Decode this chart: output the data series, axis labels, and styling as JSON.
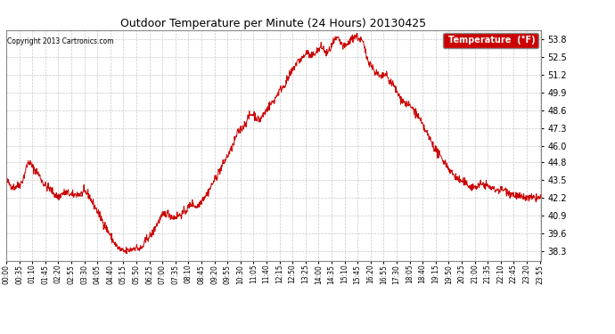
{
  "title": "Outdoor Temperature per Minute (24 Hours) 20130425",
  "copyright": "Copyright 2013 Cartronics.com",
  "legend_label": "Temperature  (°F)",
  "line_color": "#cc0000",
  "legend_bg": "#cc0000",
  "legend_text_color": "#ffffff",
  "background_color": "#ffffff",
  "grid_color": "#bbbbbb",
  "yticks": [
    38.3,
    39.6,
    40.9,
    42.2,
    43.5,
    44.8,
    46.0,
    47.3,
    48.6,
    49.9,
    51.2,
    52.5,
    53.8
  ],
  "ylim": [
    37.65,
    54.45
  ],
  "xtick_step": 35,
  "figsize": [
    6.9,
    3.75
  ],
  "dpi": 100
}
